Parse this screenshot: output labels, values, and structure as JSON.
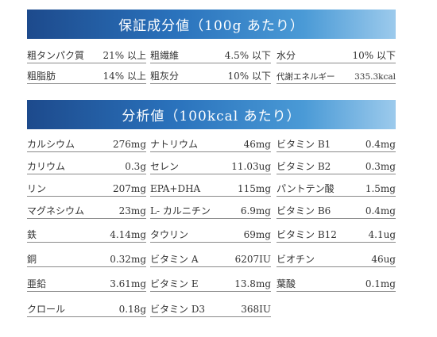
{
  "section1": {
    "title": "保証成分値（100g あたり）",
    "rows": [
      [
        {
          "label": "粗タンパク質",
          "value": "21% 以上"
        },
        {
          "label": "粗繊維",
          "value": "4.5% 以下"
        },
        {
          "label": "水分",
          "value": "10% 以下"
        }
      ],
      [
        {
          "label": "粗脂肪",
          "value": "14% 以上"
        },
        {
          "label": "粗灰分",
          "value": "10% 以下"
        },
        {
          "label": "代謝エネルギー",
          "value": "335.3kcal"
        }
      ]
    ]
  },
  "section2": {
    "title": "分析値（100kcal あたり）",
    "rows": [
      [
        {
          "label": "カルシウム",
          "value": "276mg"
        },
        {
          "label": "ナトリウム",
          "value": "46mg"
        },
        {
          "label": "ビタミン B1",
          "value": "0.4mg"
        }
      ],
      [
        {
          "label": "カリウム",
          "value": "0.3g"
        },
        {
          "label": "セレン",
          "value": "11.03ug"
        },
        {
          "label": "ビタミン B2",
          "value": "0.3mg"
        }
      ],
      [
        {
          "label": "リン",
          "value": "207mg"
        },
        {
          "label": "EPA+DHA",
          "value": "115mg"
        },
        {
          "label": "パントテン酸",
          "value": "1.5mg"
        }
      ],
      [
        {
          "label": "マグネシウム",
          "value": "23mg"
        },
        {
          "label": "L- カルニチン",
          "value": "6.9mg"
        },
        {
          "label": "ビタミン B6",
          "value": "0.4mg"
        }
      ],
      [
        {
          "label": "鉄",
          "value": "4.14mg"
        },
        {
          "label": "タウリン",
          "value": "69mg"
        },
        {
          "label": "ビタミン B12",
          "value": "4.1ug"
        }
      ],
      [
        {
          "label": "銅",
          "value": "0.32mg"
        },
        {
          "label": "ビタミン A",
          "value": "6207IU"
        },
        {
          "label": "ビオチン",
          "value": "46ug"
        }
      ],
      [
        {
          "label": "亜鉛",
          "value": "3.61mg"
        },
        {
          "label": "ビタミン E",
          "value": "13.8mg"
        },
        {
          "label": "葉酸",
          "value": "0.1mg"
        }
      ],
      [
        {
          "label": "クロール",
          "value": "0.18g"
        },
        {
          "label": "ビタミン D3",
          "value": "368IU"
        },
        null
      ]
    ]
  }
}
